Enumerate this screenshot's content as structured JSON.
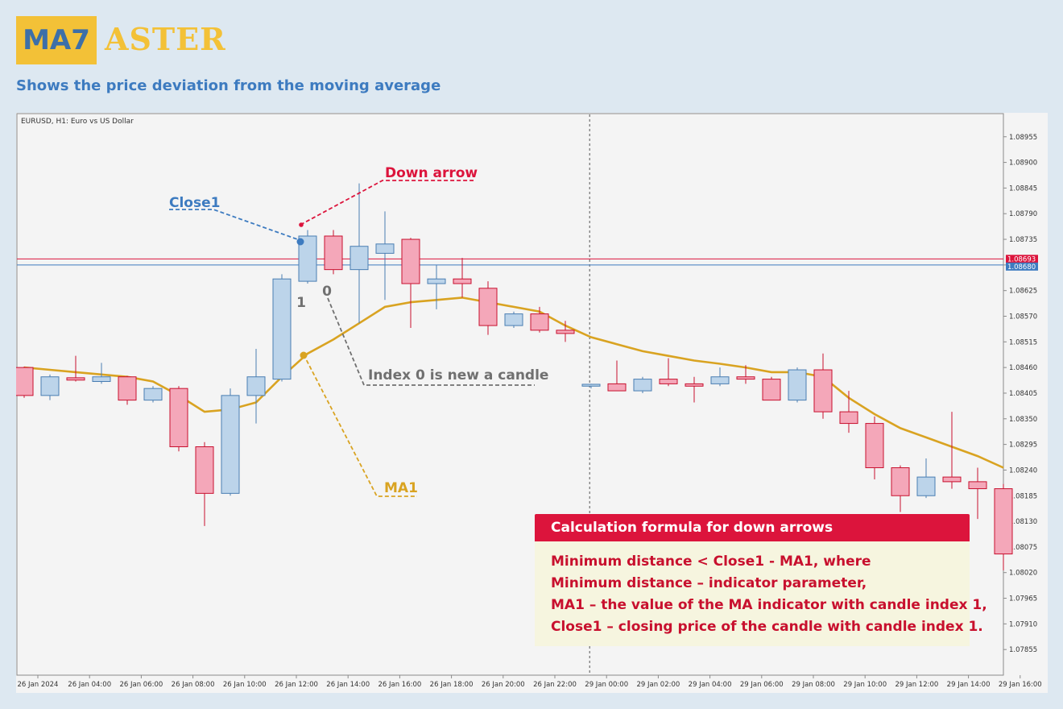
{
  "header": {
    "logo_left": "MA7",
    "logo_right": "ASTER",
    "subtitle": "Shows the price deviation from the moving average"
  },
  "chart_data": {
    "type": "candlestick",
    "title": "EURUSD, H1:  Euro vs US Dollar",
    "y_ticks": [
      "1.08955",
      "1.08900",
      "1.08845",
      "1.08790",
      "1.08735",
      "1.08680",
      "1.08625",
      "1.08570",
      "1.08515",
      "1.08460",
      "1.08405",
      "1.08350",
      "1.08295",
      "1.08240",
      "1.08185",
      "1.08130",
      "1.08075",
      "1.08020",
      "1.07965",
      "1.07910",
      "1.07855"
    ],
    "ylim": [
      1.0778,
      1.0901
    ],
    "x_ticks": [
      "26 Jan 2024",
      "26 Jan 04:00",
      "26 Jan 06:00",
      "26 Jan 08:00",
      "26 Jan 10:00",
      "26 Jan 12:00",
      "26 Jan 14:00",
      "26 Jan 16:00",
      "26 Jan 18:00",
      "26 Jan 20:00",
      "26 Jan 22:00",
      "29 Jan 00:00",
      "29 Jan 02:00",
      "29 Jan 04:00",
      "29 Jan 06:00",
      "29 Jan 08:00",
      "29 Jan 10:00",
      "29 Jan 12:00",
      "29 Jan 14:00",
      "29 Jan 16:00"
    ],
    "price_lines": [
      {
        "label": "1.08693",
        "value": 1.08693,
        "color": "#dc143c"
      },
      {
        "label": "1.08680",
        "value": 1.0868,
        "color": "#3d7bc0"
      }
    ],
    "series": [
      {
        "name": "Candles",
        "ohlc": [
          [
            1.0846,
            1.08462,
            1.08395,
            1.084
          ],
          [
            1.084,
            1.08445,
            1.0839,
            1.0844
          ],
          [
            1.08438,
            1.08485,
            1.0843,
            1.08433
          ],
          [
            1.0843,
            1.0847,
            1.08425,
            1.0844
          ],
          [
            1.0844,
            1.08442,
            1.0838,
            1.0839
          ],
          [
            1.0839,
            1.0842,
            1.08385,
            1.08415
          ],
          [
            1.08415,
            1.0842,
            1.0828,
            1.0829
          ],
          [
            1.0829,
            1.083,
            1.0812,
            1.0819
          ],
          [
            1.0819,
            1.08415,
            1.08185,
            1.084
          ],
          [
            1.084,
            1.085,
            1.0834,
            1.0844
          ],
          [
            1.08435,
            1.0866,
            1.0843,
            1.0865
          ],
          [
            1.08645,
            1.08755,
            1.0864,
            1.08742
          ],
          [
            1.08742,
            1.08755,
            1.0866,
            1.0867
          ],
          [
            1.0867,
            1.08855,
            1.08555,
            1.0872
          ],
          [
            1.08705,
            1.08795,
            1.08605,
            1.08725
          ],
          [
            1.08735,
            1.08738,
            1.08545,
            1.0864
          ],
          [
            1.0864,
            1.0868,
            1.08585,
            1.0865
          ],
          [
            1.0865,
            1.08695,
            1.0861,
            1.0864
          ],
          [
            1.0863,
            1.08645,
            1.0853,
            1.0855
          ],
          [
            1.0855,
            1.0858,
            1.08545,
            1.08575
          ],
          [
            1.08575,
            1.0859,
            1.08535,
            1.0854
          ],
          [
            1.0854,
            1.0856,
            1.08515,
            1.08533
          ],
          [
            1.0842,
            1.08425,
            1.08415,
            1.08424
          ],
          [
            1.08425,
            1.08475,
            1.0841,
            1.0841
          ],
          [
            1.0841,
            1.0844,
            1.08405,
            1.08435
          ],
          [
            1.08435,
            1.0848,
            1.0842,
            1.08425
          ],
          [
            1.08425,
            1.0844,
            1.08385,
            1.0842
          ],
          [
            1.08425,
            1.0846,
            1.0842,
            1.0844
          ],
          [
            1.0844,
            1.08465,
            1.08425,
            1.08435
          ],
          [
            1.08435,
            1.0844,
            1.0839,
            1.0839
          ],
          [
            1.0839,
            1.0846,
            1.08385,
            1.08455
          ],
          [
            1.08455,
            1.0849,
            1.0835,
            1.08365
          ],
          [
            1.08365,
            1.0841,
            1.0832,
            1.0834
          ],
          [
            1.0834,
            1.08355,
            1.0822,
            1.08245
          ],
          [
            1.08245,
            1.0825,
            1.0815,
            1.08185
          ],
          [
            1.08185,
            1.08265,
            1.0818,
            1.08225
          ],
          [
            1.08225,
            1.08365,
            1.082,
            1.08215
          ],
          [
            1.08215,
            1.08245,
            1.08135,
            1.082
          ],
          [
            1.082,
            1.0821,
            1.08025,
            1.0806
          ]
        ]
      },
      {
        "name": "MA",
        "values": [
          1.0846,
          1.08455,
          1.0845,
          1.08445,
          1.0844,
          1.0843,
          1.084,
          1.08365,
          1.0837,
          1.08385,
          1.0844,
          1.0849,
          1.0852,
          1.08555,
          1.0859,
          1.086,
          1.08605,
          1.0861,
          1.086,
          1.0859,
          1.0858,
          1.0855,
          1.08525,
          1.0851,
          1.08495,
          1.08485,
          1.08475,
          1.08468,
          1.0846,
          1.0845,
          1.0845,
          1.0844,
          1.08395,
          1.0836,
          1.0833,
          1.0831,
          1.0829,
          1.0827,
          1.08245
        ]
      }
    ],
    "annotations": {
      "close1": "Close1",
      "down_arrow": "Down arrow",
      "index_1": "1",
      "index_0": "0",
      "index0_note": "Index 0 is new a candle",
      "ma1": "MA1"
    }
  },
  "formula": {
    "title": "Calculation formula for down arrows",
    "lines": [
      "Minimum distance < Close1 - MA1, where",
      "Minimum distance – indicator parameter,",
      "MA1 – the value of the MA indicator with candle index 1,",
      "Close1 – closing price of the candle with candle index 1."
    ]
  },
  "colors": {
    "bull_fill": "#bcd4ea",
    "bull_stroke": "#4a7eb2",
    "bear_fill": "#f4a7b9",
    "bear_stroke": "#c8102e",
    "ma": "#d9a321",
    "accent_red": "#dc143c",
    "accent_blue": "#3d7bc0",
    "note_gray": "#707070"
  }
}
